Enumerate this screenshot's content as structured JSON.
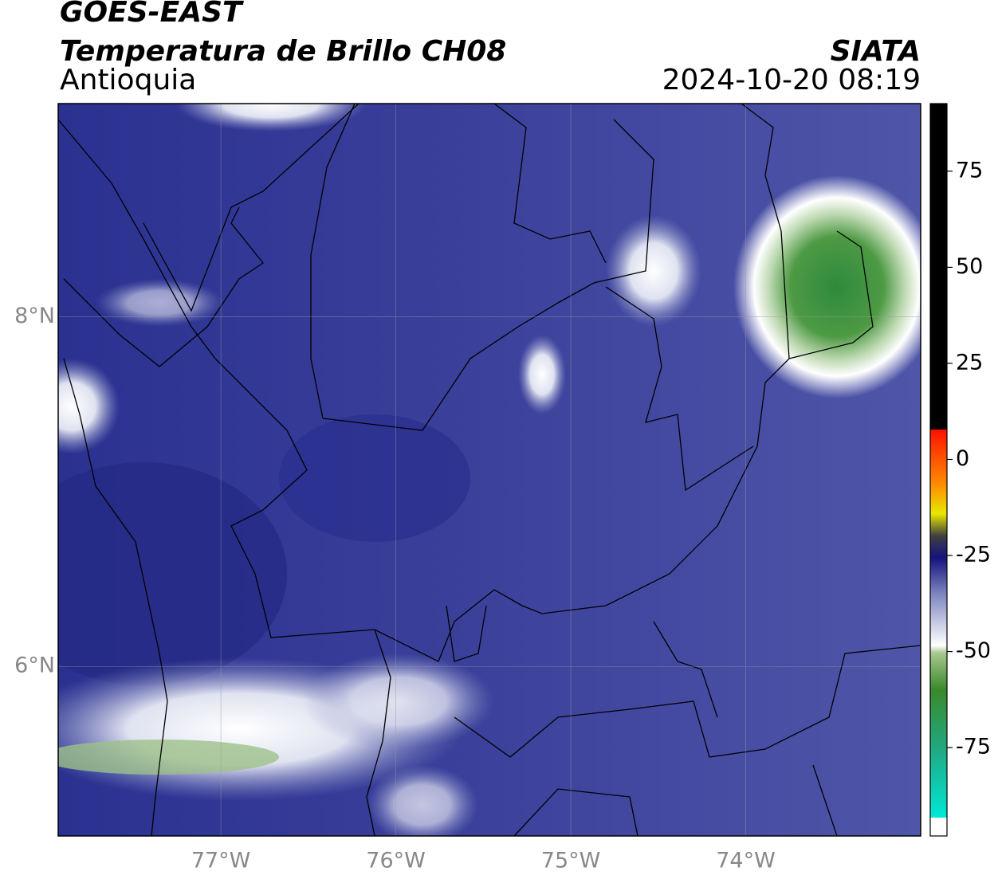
{
  "header": {
    "title": "GOES-EAST",
    "subtitle": "Temperatura de Brillo CH08",
    "source": "SIATA",
    "region": "Antioquia",
    "datetime": "2024-10-20 08:19"
  },
  "map": {
    "lon_range": [
      -77.93,
      -73.0
    ],
    "lat_range": [
      5.03,
      9.22
    ],
    "lon_ticks": [
      {
        "value": -77,
        "label": "77°W"
      },
      {
        "value": -76,
        "label": "76°W"
      },
      {
        "value": -75,
        "label": "75°W"
      },
      {
        "value": -74,
        "label": "74°W"
      }
    ],
    "lat_ticks": [
      {
        "value": 6,
        "label": "6°N"
      },
      {
        "value": 8,
        "label": "8°N"
      }
    ]
  },
  "colorbar": {
    "range": [
      -98,
      92.6
    ],
    "ticks": [
      75,
      50,
      25,
      0,
      -25,
      -50,
      -75
    ]
  }
}
